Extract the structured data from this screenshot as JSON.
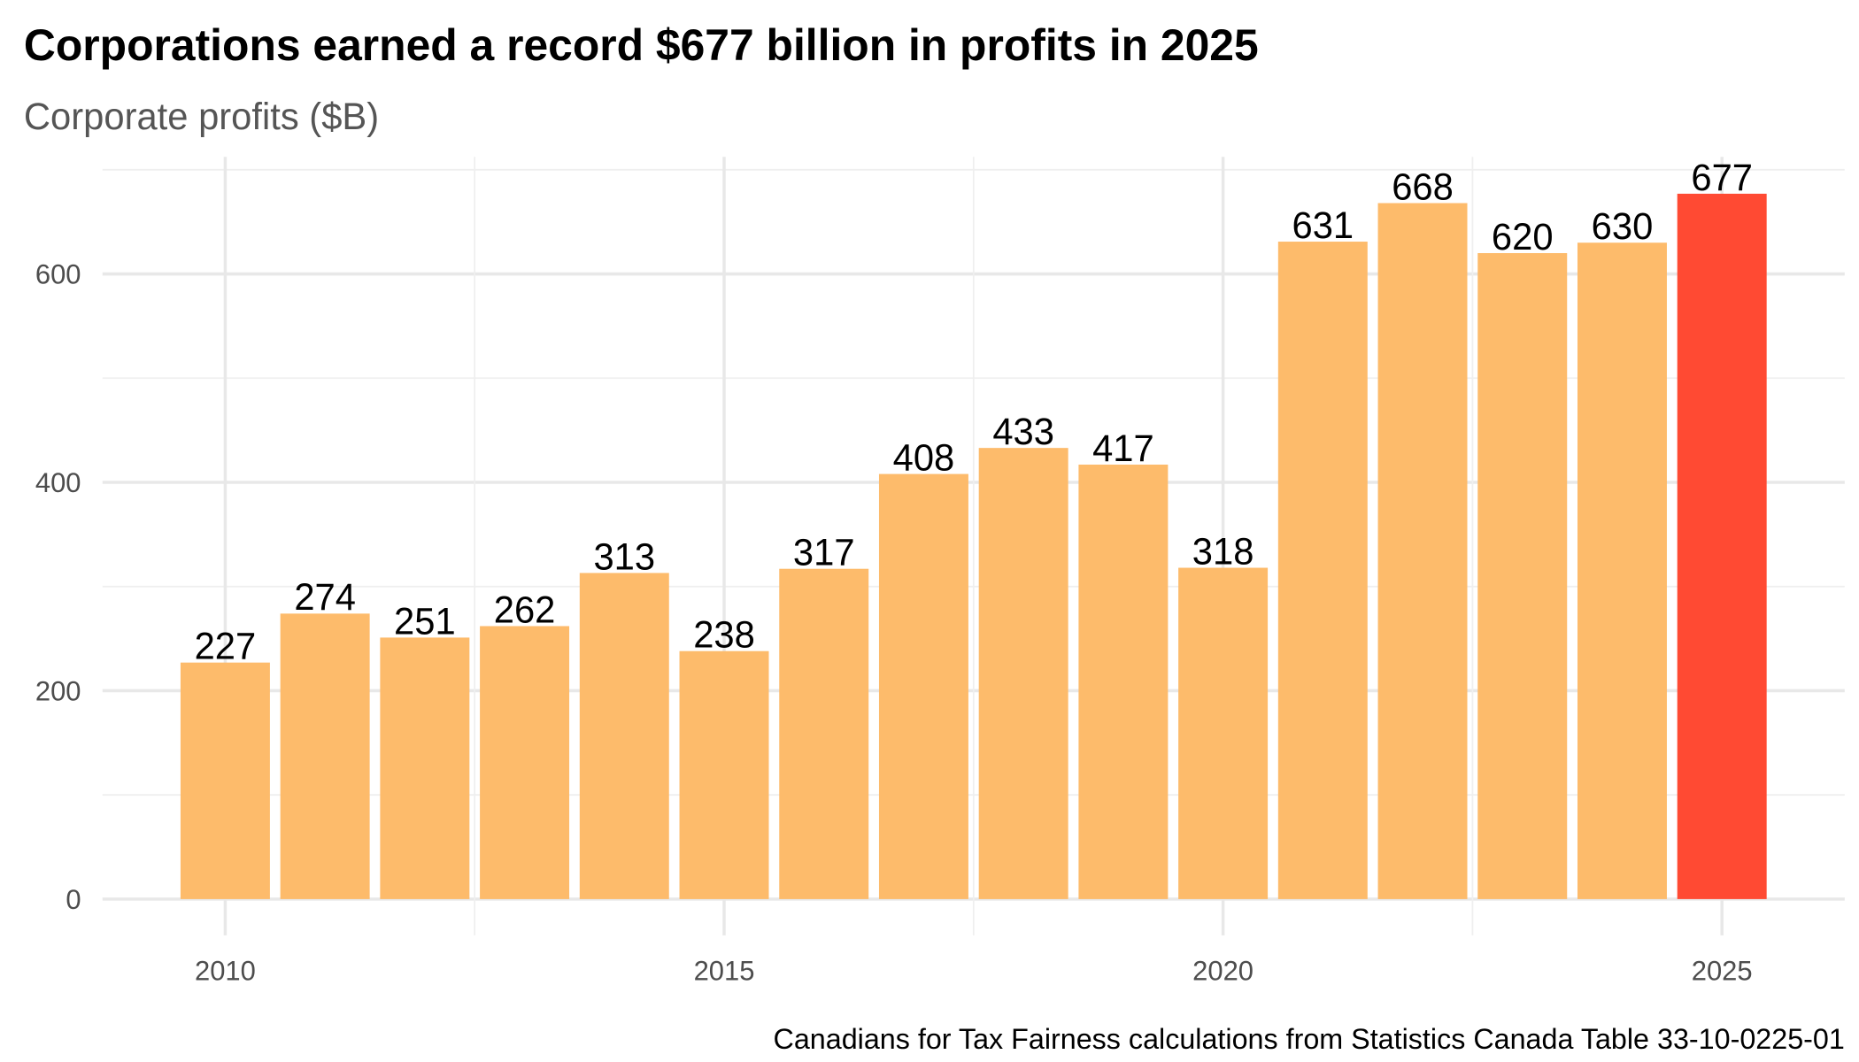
{
  "title": "Corporations earned a record $677 billion in profits in 2025",
  "subtitle": "Corporate profits ($B)",
  "caption": "Canadians for Tax Fairness calculations from Statistics Canada Table 33-10-0225-01",
  "chart_data": {
    "type": "bar",
    "title": "Corporations earned a record $677 billion in profits in 2025",
    "subtitle": "Corporate profits ($B)",
    "xlabel": "",
    "ylabel": "",
    "x": [
      2010,
      2011,
      2012,
      2013,
      2014,
      2015,
      2016,
      2017,
      2018,
      2019,
      2020,
      2021,
      2022,
      2023,
      2024,
      2025
    ],
    "values": [
      227,
      274,
      251,
      262,
      313,
      238,
      317,
      408,
      433,
      417,
      318,
      631,
      668,
      620,
      630,
      677
    ],
    "highlight_x": 2025,
    "colors": {
      "default": "#FDBB6B",
      "highlight": "#FF4A33"
    },
    "x_ticks": [
      "2010",
      "2015",
      "2020",
      "2025"
    ],
    "y_ticks": [
      "0",
      "200",
      "400",
      "600"
    ],
    "ylim": [
      0,
      710
    ],
    "grid": true,
    "legend": "none"
  }
}
